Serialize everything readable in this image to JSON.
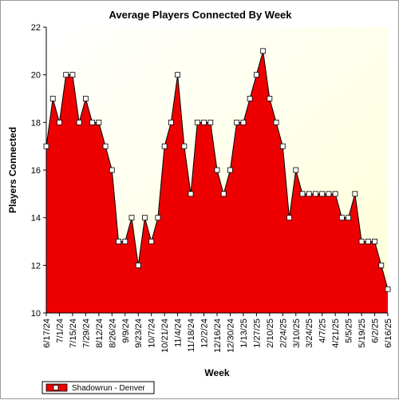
{
  "chart_data": {
    "type": "area",
    "title": "Average Players Connected By Week",
    "xlabel": "Week",
    "ylabel": "Players Connected",
    "ylim": [
      10,
      22
    ],
    "yticks": [
      10,
      12,
      14,
      16,
      18,
      20,
      22
    ],
    "grid": false,
    "legend_position": "bottom-left",
    "plot_background": "#ffffe0",
    "series_color": "#ee0000",
    "x_tick_labels": [
      "6/17/24",
      "7/1/24",
      "7/15/24",
      "7/29/24",
      "8/12/24",
      "8/26/24",
      "9/9/24",
      "9/23/24",
      "10/7/24",
      "10/21/24",
      "11/4/24",
      "11/18/24",
      "12/2/24",
      "12/16/24",
      "12/30/24",
      "1/13/25",
      "1/27/25",
      "2/10/25",
      "2/24/25",
      "3/10/25",
      "3/24/25",
      "4/7/25",
      "4/21/25",
      "5/5/25",
      "5/19/25",
      "6/2/25",
      "6/16/25"
    ],
    "series": [
      {
        "name": "Shadowrun - Denver",
        "values": [
          17,
          19,
          18,
          20,
          20,
          18,
          19,
          18,
          18,
          17,
          16,
          13,
          13,
          14,
          12,
          14,
          13,
          14,
          17,
          18,
          20,
          17,
          15,
          18,
          18,
          18,
          16,
          15,
          16,
          18,
          18,
          19,
          20,
          21,
          19,
          18,
          17,
          14,
          16,
          15,
          15,
          15,
          15,
          15,
          15,
          14,
          14,
          15,
          13,
          13,
          13,
          12,
          11
        ]
      }
    ]
  }
}
